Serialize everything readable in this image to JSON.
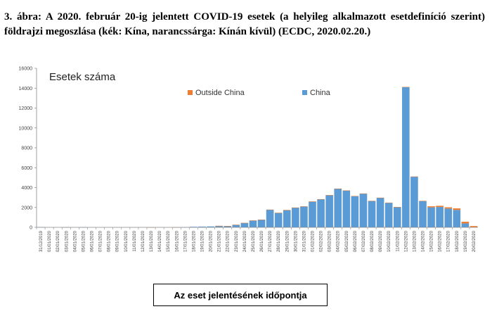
{
  "figure": {
    "caption": "3. ábra: A 2020. február 20-ig jelentett COVID-19 esetek (a helyileg alkalmazott esetdefiníció szerint) földrajzi megoszlása (kék: Kína, narancssárga: Kínán kívül) (ECDC, 2020.02.20.)"
  },
  "chart_data": {
    "type": "bar",
    "stacked": true,
    "title": "Esetek száma",
    "xlabel": "Az eset jelentésének időpontja",
    "ylabel": "",
    "ylim": [
      0,
      16000
    ],
    "yticks": [
      0,
      2000,
      4000,
      6000,
      8000,
      10000,
      12000,
      14000,
      16000
    ],
    "grid": false,
    "legend_position": "top-center",
    "categories": [
      "31/12/2019",
      "01/01/2020",
      "02/01/2020",
      "03/01/2020",
      "04/01/2020",
      "05/01/2020",
      "06/01/2020",
      "07/01/2020",
      "08/01/2020",
      "09/01/2020",
      "10/01/2020",
      "11/01/2020",
      "12/01/2020",
      "13/01/2020",
      "14/01/2020",
      "15/01/2020",
      "16/01/2020",
      "17/01/2020",
      "18/01/2020",
      "19/01/2020",
      "20/01/2020",
      "21/01/2020",
      "22/01/2020",
      "23/01/2020",
      "24/01/2020",
      "25/01/2020",
      "26/01/2020",
      "27/01/2020",
      "28/01/2020",
      "29/01/2020",
      "30/01/2020",
      "31/01/2020",
      "01/02/2020",
      "02/02/2020",
      "03/02/2020",
      "04/02/2020",
      "05/02/2020",
      "06/02/2020",
      "07/02/2020",
      "08/02/2020",
      "09/02/2020",
      "10/02/2020",
      "11/02/2020",
      "12/02/2020",
      "13/02/2020",
      "14/02/2020",
      "15/02/2020",
      "16/02/2020",
      "17/02/2020",
      "18/02/2020",
      "19/02/2020",
      "20/02/2020"
    ],
    "series": [
      {
        "name": "China",
        "color": "#5b9bd5",
        "values": [
          27,
          0,
          0,
          17,
          0,
          15,
          0,
          0,
          0,
          0,
          0,
          0,
          0,
          0,
          0,
          0,
          4,
          17,
          59,
          77,
          92,
          150,
          130,
          256,
          444,
          688,
          769,
          1771,
          1459,
          1737,
          1982,
          2102,
          2590,
          2829,
          3235,
          3887,
          3694,
          3143,
          3385,
          2652,
          2973,
          2467,
          2015,
          14108,
          5090,
          2641,
          2009,
          2048,
          1886,
          1749,
          394,
          0
        ]
      },
      {
        "name": "Outside China",
        "color": "#ed7d31",
        "values": [
          0,
          0,
          0,
          0,
          0,
          0,
          0,
          0,
          0,
          0,
          0,
          0,
          0,
          1,
          0,
          0,
          1,
          0,
          0,
          0,
          0,
          1,
          3,
          7,
          3,
          4,
          6,
          14,
          6,
          10,
          14,
          8,
          15,
          7,
          11,
          13,
          22,
          12,
          25,
          18,
          14,
          20,
          38,
          16,
          27,
          30,
          110,
          120,
          130,
          160,
          170,
          130
        ]
      }
    ]
  }
}
